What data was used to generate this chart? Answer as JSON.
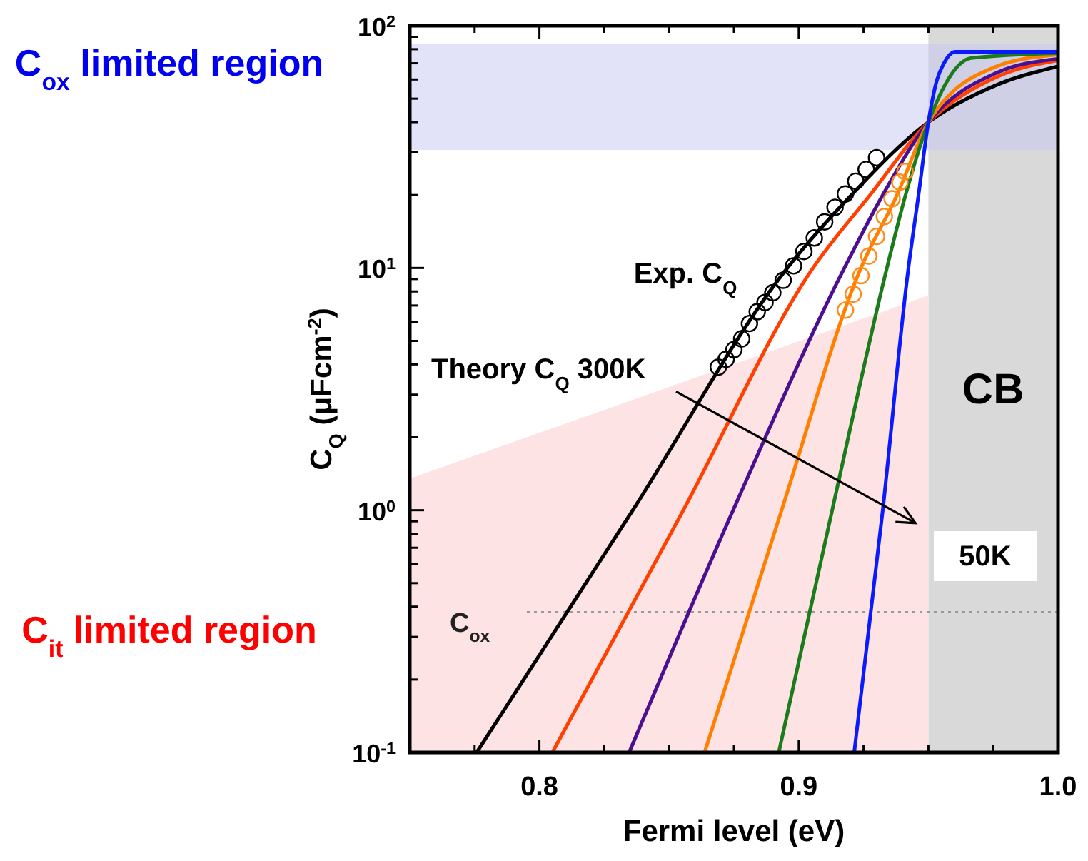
{
  "chart_data": {
    "type": "line",
    "xlabel": "Fermi level (eV)",
    "ylabel": "C$_{Q}$ (μFcm$^{-2}$)",
    "log": "y",
    "xlim": [
      0.75,
      1.0
    ],
    "ylim": [
      0.1,
      100
    ],
    "xticks": [
      {
        "value": 0.775,
        "label": null
      },
      0.8,
      {
        "value": 0.825,
        "label": null
      },
      {
        "value": 0.85,
        "label": null
      },
      {
        "value": 0.875,
        "label": null
      },
      0.9,
      {
        "value": 0.925,
        "label": null
      },
      {
        "value": 0.95,
        "label": null
      },
      {
        "value": 0.975,
        "label": null
      },
      {
        "value": 1.0,
        "label": "1.0"
      }
    ],
    "yticks": [
      {
        "value": 0.1,
        "label": "10$^{-1}$"
      },
      {
        "value": 0.2,
        "label": null
      },
      {
        "value": 0.3,
        "label": null
      },
      {
        "value": 0.4,
        "label": null
      },
      {
        "value": 0.5,
        "label": null
      },
      {
        "value": 0.6,
        "label": null
      },
      {
        "value": 0.7,
        "label": null
      },
      {
        "value": 0.8,
        "label": null
      },
      {
        "value": 0.9,
        "label": null
      },
      {
        "value": 1,
        "label": "10$^{0}$"
      },
      {
        "value": 2,
        "label": null
      },
      {
        "value": 3,
        "label": null
      },
      {
        "value": 4,
        "label": null
      },
      {
        "value": 5,
        "label": null
      },
      {
        "value": 6,
        "label": null
      },
      {
        "value": 7,
        "label": null
      },
      {
        "value": 8,
        "label": null
      },
      {
        "value": 9,
        "label": null
      },
      {
        "value": 10,
        "label": "10$^{1}$"
      },
      {
        "value": 20,
        "label": null
      },
      {
        "value": 30,
        "label": null
      },
      {
        "value": 40,
        "label": null
      },
      {
        "value": 50,
        "label": null
      },
      {
        "value": 60,
        "label": null
      },
      {
        "value": 70,
        "label": null
      },
      {
        "value": 80,
        "label": null
      },
      {
        "value": 90,
        "label": null
      },
      {
        "value": 100,
        "label": "10$^{2}$"
      }
    ],
    "bands": [
      {
        "axis": "x",
        "from": 0.95,
        "to": 1.0,
        "label": "CB",
        "color": "#d9d9d9"
      },
      {
        "axis": "y",
        "from": 30.7,
        "to": 84,
        "color": "#c5c8f2"
      }
    ],
    "ref_lines": [
      {
        "axis": "y",
        "value": 0.38,
        "label": "C$_{ox}$",
        "color": "#999999",
        "line_style": "dotted"
      }
    ],
    "annotations": [
      "C$_{ox}$ limited region",
      "C$_{it}$ limited region",
      "Exp. C$_{Q}$",
      "Theory C$_{Q}$ 300K",
      "50K"
    ],
    "series": [
      {
        "type": "area",
        "color": "#fde3e3",
        "x": [
          0.75,
          0.95
        ],
        "values": [
          1.35,
          7.7
        ]
      },
      {
        "color": "#000000",
        "x": [
          0.7758,
          0.836,
          0.8956,
          0.9203,
          0.95,
          0.9764,
          1.0
        ],
        "values": [
          0.1,
          1,
          10,
          20,
          40,
          57,
          68
        ]
      },
      {
        "color": "#ff4000",
        "x": [
          0.805,
          0.8555,
          0.9055,
          0.9275,
          0.95,
          0.9764,
          1.0
        ],
        "values": [
          0.1,
          1,
          10,
          20,
          40,
          61.5,
          72
        ]
      },
      {
        "color": "#4b0f8f",
        "x": [
          0.8346,
          0.8747,
          0.9176,
          0.9324,
          0.95,
          0.9764,
          1.0
        ],
        "values": [
          0.1,
          1,
          10,
          20,
          40,
          64,
          73
        ]
      },
      {
        "color": "#ff8000",
        "x": [
          0.8637,
          0.8934,
          0.924,
          0.9379,
          0.95,
          0.9764,
          1.0
        ],
        "values": [
          0.1,
          1,
          10,
          20,
          40,
          68,
          76
        ]
      },
      {
        "color": "#1c7c1c",
        "x": [
          0.8923,
          0.9129,
          0.934,
          0.9412,
          0.95,
          0.9665,
          1.0
        ],
        "values": [
          0.1,
          1,
          10,
          20,
          40,
          73.5,
          77
        ]
      },
      {
        "color": "#0a1aff",
        "x": [
          0.9214,
          0.9324,
          0.9423,
          0.9462,
          0.95,
          0.9533,
          0.956,
          0.9604,
          1.0
        ],
        "values": [
          0.1,
          1,
          10,
          20,
          40,
          59.7,
          70,
          78,
          78
        ]
      },
      {
        "type": "scatter",
        "marker": "circle",
        "color": "#000000",
        "x": [
          0.869,
          0.872,
          0.875,
          0.878,
          0.881,
          0.884,
          0.887,
          0.89,
          0.894,
          0.898,
          0.902,
          0.906,
          0.91,
          0.914,
          0.918,
          0.922,
          0.926,
          0.93
        ],
        "values": [
          3.9,
          4.2,
          4.6,
          5.1,
          5.9,
          6.6,
          7.2,
          7.9,
          8.9,
          10.2,
          11.7,
          13.3,
          15.5,
          17.8,
          20.2,
          22.8,
          25.5,
          28.5
        ]
      },
      {
        "type": "scatter",
        "marker": "circle",
        "color": "#ff8c1a",
        "x": [
          0.918,
          0.921,
          0.924,
          0.927,
          0.93,
          0.933,
          0.936,
          0.939,
          0.941
        ],
        "values": [
          6.7,
          7.8,
          9.3,
          11.2,
          13.5,
          16.3,
          19.3,
          22.6,
          25
        ]
      }
    ]
  }
}
